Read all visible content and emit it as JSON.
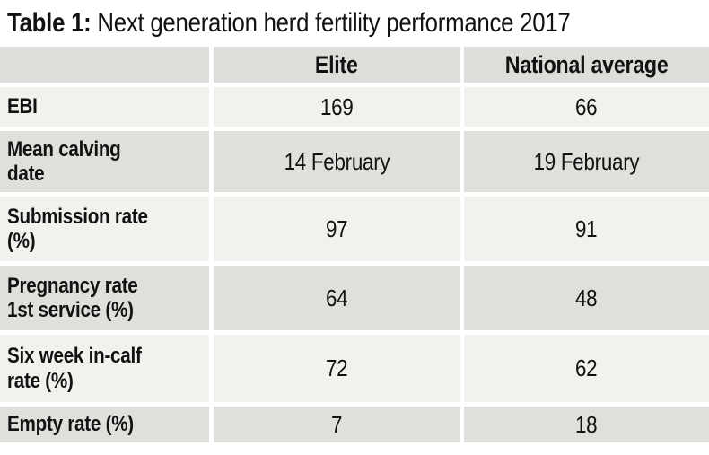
{
  "title": {
    "prefix": "Table 1:",
    "text": "Next generation herd fertility performance 2017"
  },
  "table": {
    "columns": [
      "",
      "Elite",
      "National average"
    ],
    "rows": [
      {
        "label": "EBI",
        "elite": "169",
        "national": "66"
      },
      {
        "label": "Mean calving date",
        "elite": "14 February",
        "national": "19 February"
      },
      {
        "label": "Submission rate (%)",
        "elite": "97",
        "national": "91"
      },
      {
        "label": "Pregnancy rate 1st service (%)",
        "elite": "64",
        "national": "48"
      },
      {
        "label": "Six week in-calf rate (%)",
        "elite": "72",
        "national": "62"
      },
      {
        "label": "Empty rate (%)",
        "elite": "7",
        "national": "18"
      }
    ]
  },
  "chart_data": {
    "type": "table",
    "title": "Table 1: Next generation herd fertility performance 2017",
    "columns": [
      "",
      "Elite",
      "National average"
    ],
    "rows": [
      [
        "EBI",
        "169",
        "66"
      ],
      [
        "Mean calving date",
        "14 February",
        "19 February"
      ],
      [
        "Submission rate (%)",
        "97",
        "91"
      ],
      [
        "Pregnancy rate 1st service (%)",
        "64",
        "48"
      ],
      [
        "Six week in-calf rate (%)",
        "72",
        "62"
      ],
      [
        "Empty rate (%)",
        "7",
        "18"
      ]
    ]
  },
  "colors": {
    "background": "#ffffff",
    "header_row_bg": "#dfddd9",
    "row_light_bg": "#f2f1ee",
    "row_dark_bg": "#e1dfdc",
    "text": "#121212"
  }
}
